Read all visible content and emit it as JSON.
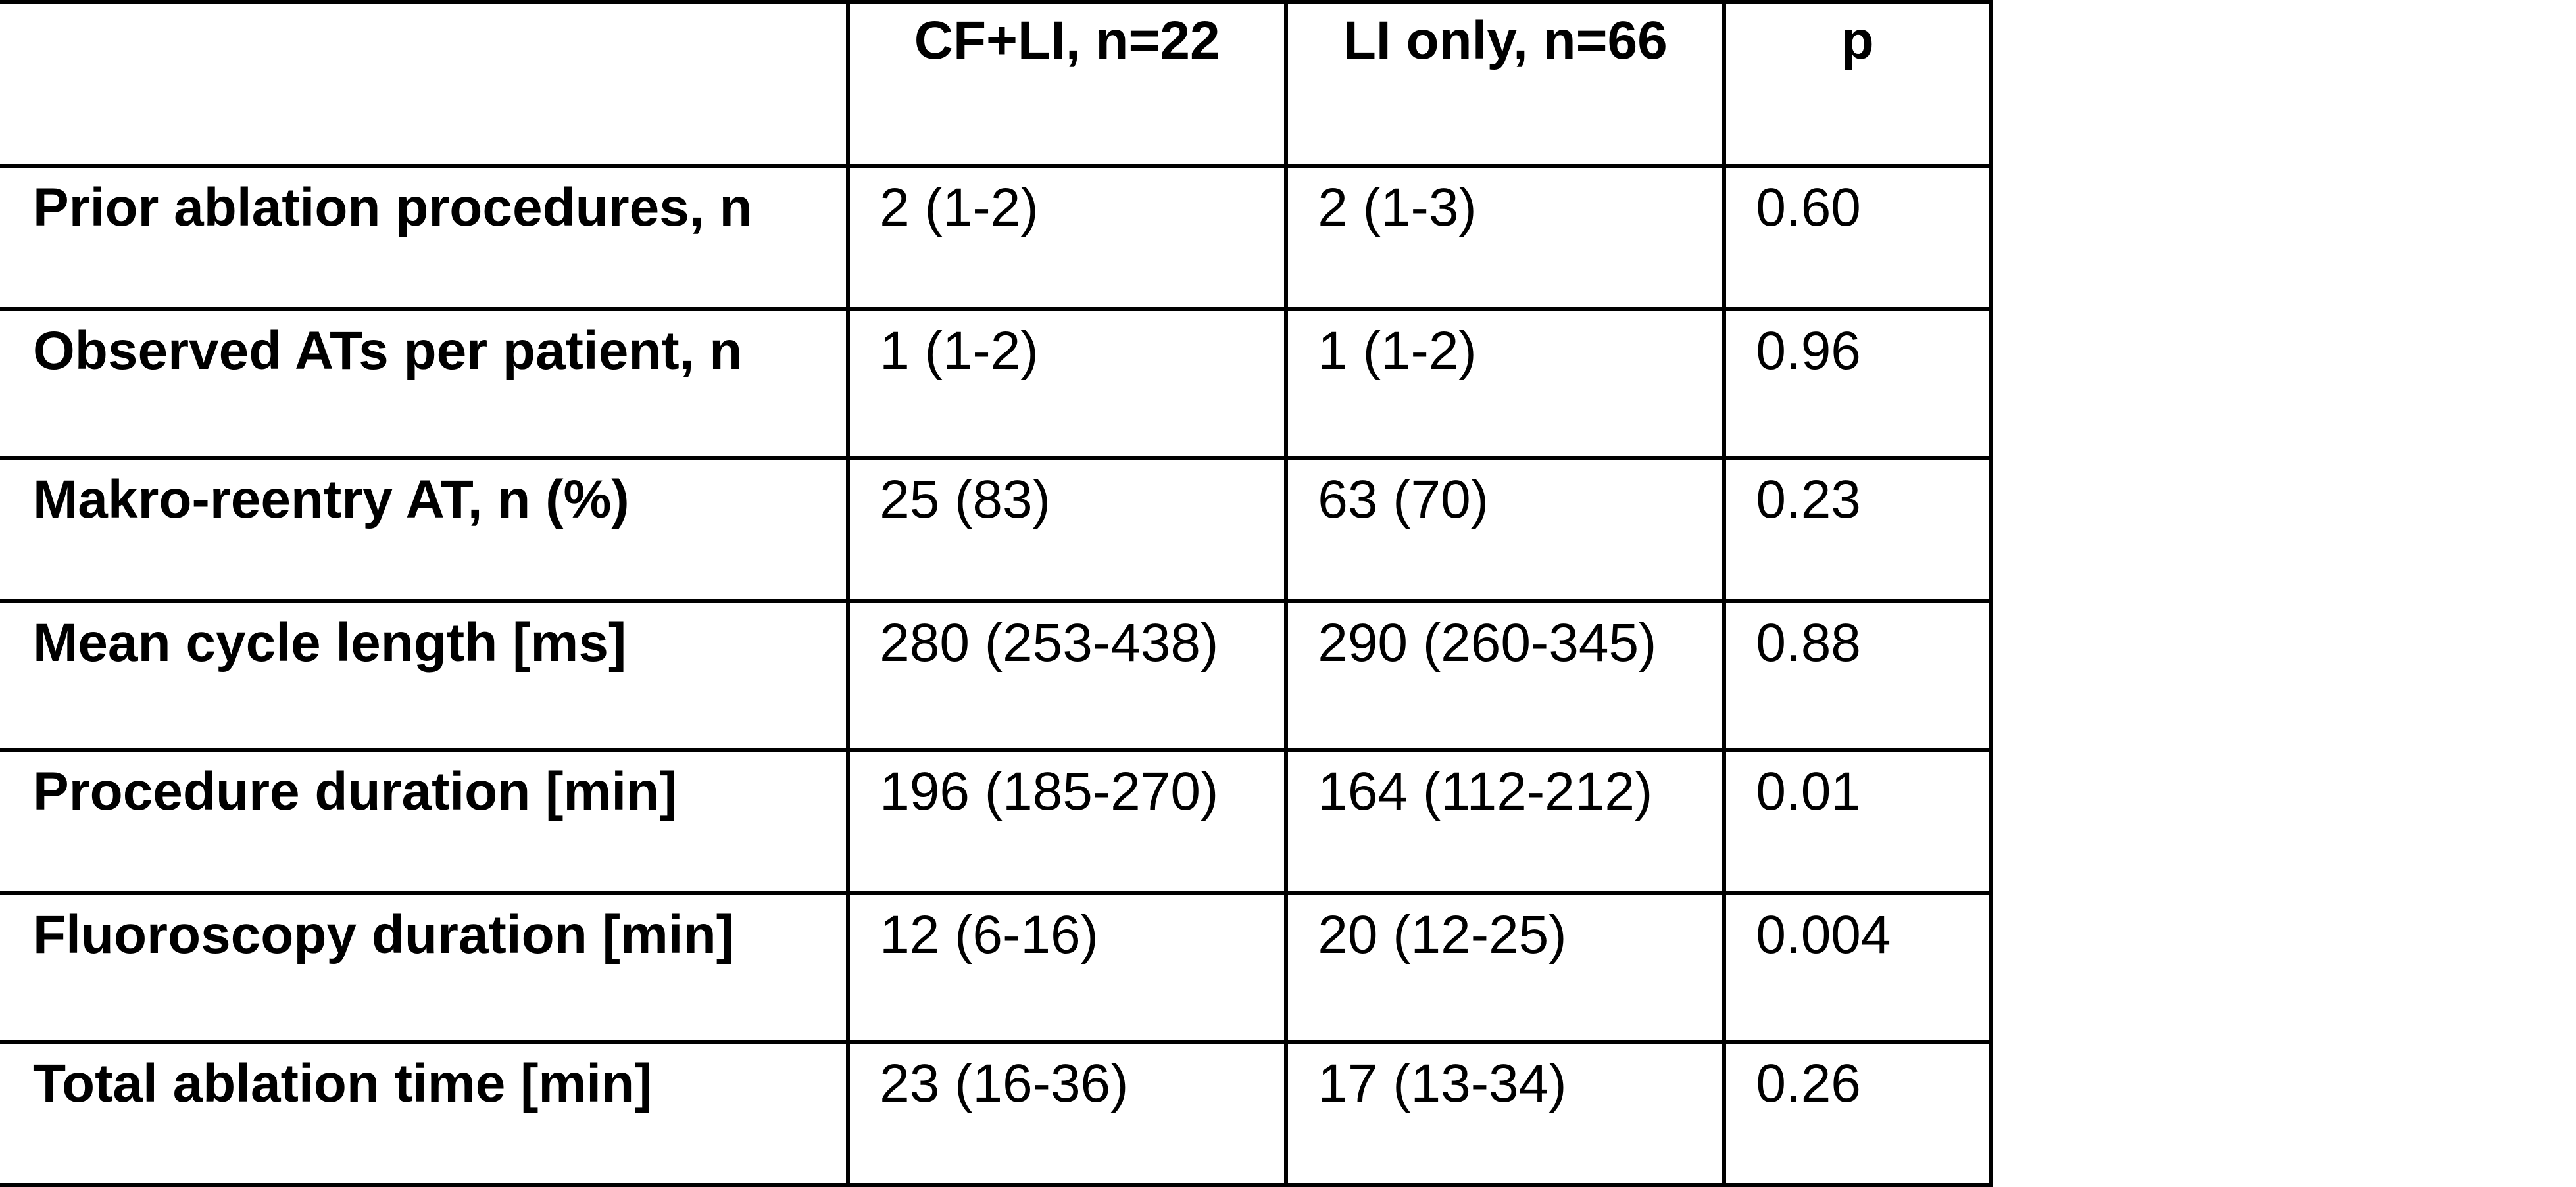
{
  "table": {
    "headers": [
      "",
      "CF+LI, n=22",
      "LI only, n=66",
      "p"
    ],
    "rows": [
      {
        "label": "Prior ablation procedures, n",
        "cf_li": "2 (1-2)",
        "li_only": "2 (1-3)",
        "p": "0.60"
      },
      {
        "label": "Observed ATs per patient, n",
        "cf_li": "1 (1-2)",
        "li_only": "1 (1-2)",
        "p": "0.96"
      },
      {
        "label": "Makro-reentry AT, n (%)",
        "cf_li": "25 (83)",
        "li_only": "63 (70)",
        "p": "0.23"
      },
      {
        "label": "Mean cycle length [ms]",
        "cf_li": "280 (253-438)",
        "li_only": "290 (260-345)",
        "p": "0.88"
      },
      {
        "label": "Procedure duration [min]",
        "cf_li": "196 (185-270)",
        "li_only": "164 (112-212)",
        "p": "0.01"
      },
      {
        "label": "Fluoroscopy duration [min]",
        "cf_li": "12 (6-16)",
        "li_only": "20 (12-25)",
        "p": "0.004"
      },
      {
        "label": "Total ablation time [min]",
        "cf_li": "23 (16-36)",
        "li_only": "17 (13-34)",
        "p": "0.26"
      }
    ]
  }
}
